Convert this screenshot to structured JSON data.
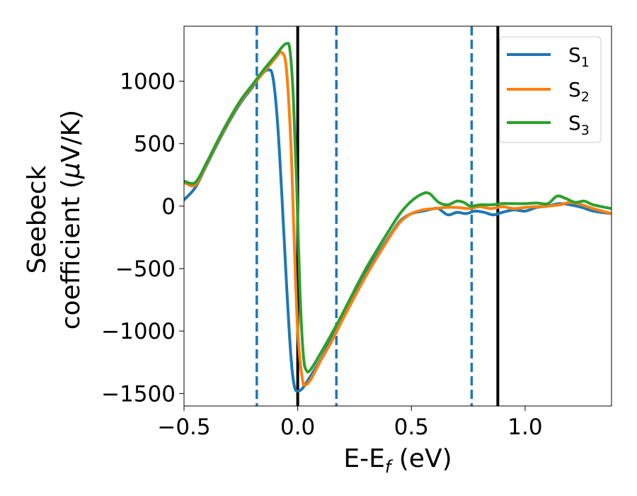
{
  "chart_data": {
    "type": "line",
    "xlabel": "E-E",
    "xlabel_sub": "f",
    "xlabel_unit": "(eV)",
    "ylabel_line1": "Seebeck",
    "ylabel_line2_text": "coefficient",
    "ylabel_unit_mu": "μ",
    "ylabel_unit_rest": "V/K)",
    "ylabel_unit_open": "(",
    "xlim": [
      -0.5,
      1.38
    ],
    "ylim": [
      -1600,
      1440
    ],
    "x_ticks": [
      -0.5,
      0.0,
      0.5,
      1.0
    ],
    "x_tick_labels": [
      "−0.5",
      "0.0",
      "0.5",
      "1.0"
    ],
    "y_ticks": [
      -1500,
      -1000,
      -500,
      0,
      500,
      1000
    ],
    "y_tick_labels": [
      "−1500",
      "−1000",
      "−500",
      "0",
      "500",
      "1000"
    ],
    "grid": false,
    "legend_position": "top-right",
    "vlines_dashed": {
      "color": "#1f77b4",
      "x": [
        -0.18,
        0.17,
        0.765
      ]
    },
    "vlines_solid": {
      "color": "#000000",
      "x": [
        0.0,
        0.88
      ]
    },
    "series": [
      {
        "name": "S",
        "name_sub": "1",
        "color": "#1f77b4",
        "points": [
          [
            -0.5,
            50
          ],
          [
            -0.45,
            150
          ],
          [
            -0.4,
            330
          ],
          [
            -0.35,
            510
          ],
          [
            -0.3,
            680
          ],
          [
            -0.25,
            830
          ],
          [
            -0.2,
            950
          ],
          [
            -0.16,
            1050
          ],
          [
            -0.13,
            1090
          ],
          [
            -0.11,
            1040
          ],
          [
            -0.09,
            700
          ],
          [
            -0.07,
            100
          ],
          [
            -0.05,
            -600
          ],
          [
            -0.03,
            -1200
          ],
          [
            -0.015,
            -1440
          ],
          [
            0.0,
            -1480
          ],
          [
            0.02,
            -1460
          ],
          [
            0.05,
            -1380
          ],
          [
            0.1,
            -1230
          ],
          [
            0.15,
            -1060
          ],
          [
            0.2,
            -880
          ],
          [
            0.3,
            -540
          ],
          [
            0.4,
            -250
          ],
          [
            0.45,
            -120
          ],
          [
            0.5,
            -60
          ],
          [
            0.55,
            -40
          ],
          [
            0.6,
            -20
          ],
          [
            0.62,
            -20
          ],
          [
            0.66,
            -70
          ],
          [
            0.7,
            -50
          ],
          [
            0.74,
            -60
          ],
          [
            0.78,
            -40
          ],
          [
            0.82,
            -50
          ],
          [
            0.86,
            -70
          ],
          [
            0.9,
            -50
          ],
          [
            0.95,
            -30
          ],
          [
            1.0,
            -40
          ],
          [
            1.05,
            -10
          ],
          [
            1.1,
            0
          ],
          [
            1.15,
            20
          ],
          [
            1.2,
            10
          ],
          [
            1.25,
            -10
          ],
          [
            1.3,
            -40
          ],
          [
            1.38,
            -60
          ]
        ]
      },
      {
        "name": "S",
        "name_sub": "2",
        "color": "#ff7f0e",
        "points": [
          [
            -0.5,
            190
          ],
          [
            -0.45,
            170
          ],
          [
            -0.4,
            340
          ],
          [
            -0.35,
            520
          ],
          [
            -0.3,
            690
          ],
          [
            -0.25,
            840
          ],
          [
            -0.2,
            960
          ],
          [
            -0.15,
            1070
          ],
          [
            -0.1,
            1180
          ],
          [
            -0.07,
            1230
          ],
          [
            -0.05,
            1100
          ],
          [
            -0.03,
            500
          ],
          [
            -0.015,
            -300
          ],
          [
            0.0,
            -1000
          ],
          [
            0.02,
            -1380
          ],
          [
            0.035,
            -1430
          ],
          [
            0.06,
            -1380
          ],
          [
            0.1,
            -1240
          ],
          [
            0.15,
            -1080
          ],
          [
            0.2,
            -900
          ],
          [
            0.3,
            -560
          ],
          [
            0.4,
            -260
          ],
          [
            0.45,
            -130
          ],
          [
            0.5,
            -60
          ],
          [
            0.55,
            -30
          ],
          [
            0.6,
            -20
          ],
          [
            0.65,
            -10
          ],
          [
            0.7,
            -10
          ],
          [
            0.75,
            -20
          ],
          [
            0.8,
            -5
          ],
          [
            0.85,
            -20
          ],
          [
            0.9,
            -5
          ],
          [
            0.95,
            -20
          ],
          [
            1.0,
            -10
          ],
          [
            1.05,
            -5
          ],
          [
            1.1,
            0
          ],
          [
            1.15,
            10
          ],
          [
            1.2,
            30
          ],
          [
            1.25,
            10
          ],
          [
            1.3,
            -20
          ],
          [
            1.38,
            -60
          ]
        ]
      },
      {
        "name": "S",
        "name_sub": "3",
        "color": "#2ca02c",
        "points": [
          [
            -0.5,
            200
          ],
          [
            -0.45,
            190
          ],
          [
            -0.4,
            350
          ],
          [
            -0.35,
            530
          ],
          [
            -0.3,
            700
          ],
          [
            -0.25,
            850
          ],
          [
            -0.2,
            970
          ],
          [
            -0.15,
            1090
          ],
          [
            -0.1,
            1200
          ],
          [
            -0.07,
            1270
          ],
          [
            -0.05,
            1300
          ],
          [
            -0.035,
            1260
          ],
          [
            -0.02,
            900
          ],
          [
            -0.005,
            200
          ],
          [
            0.01,
            -700
          ],
          [
            0.025,
            -1200
          ],
          [
            0.04,
            -1320
          ],
          [
            0.06,
            -1300
          ],
          [
            0.1,
            -1180
          ],
          [
            0.15,
            -1020
          ],
          [
            0.2,
            -850
          ],
          [
            0.3,
            -500
          ],
          [
            0.4,
            -200
          ],
          [
            0.45,
            -60
          ],
          [
            0.5,
            40
          ],
          [
            0.55,
            100
          ],
          [
            0.58,
            100
          ],
          [
            0.62,
            30
          ],
          [
            0.66,
            10
          ],
          [
            0.7,
            40
          ],
          [
            0.73,
            30
          ],
          [
            0.76,
            0
          ],
          [
            0.8,
            10
          ],
          [
            0.85,
            10
          ],
          [
            0.9,
            20
          ],
          [
            0.95,
            20
          ],
          [
            1.0,
            20
          ],
          [
            1.05,
            25
          ],
          [
            1.1,
            20
          ],
          [
            1.14,
            80
          ],
          [
            1.18,
            60
          ],
          [
            1.22,
            30
          ],
          [
            1.26,
            40
          ],
          [
            1.3,
            10
          ],
          [
            1.38,
            -20
          ]
        ]
      }
    ]
  }
}
